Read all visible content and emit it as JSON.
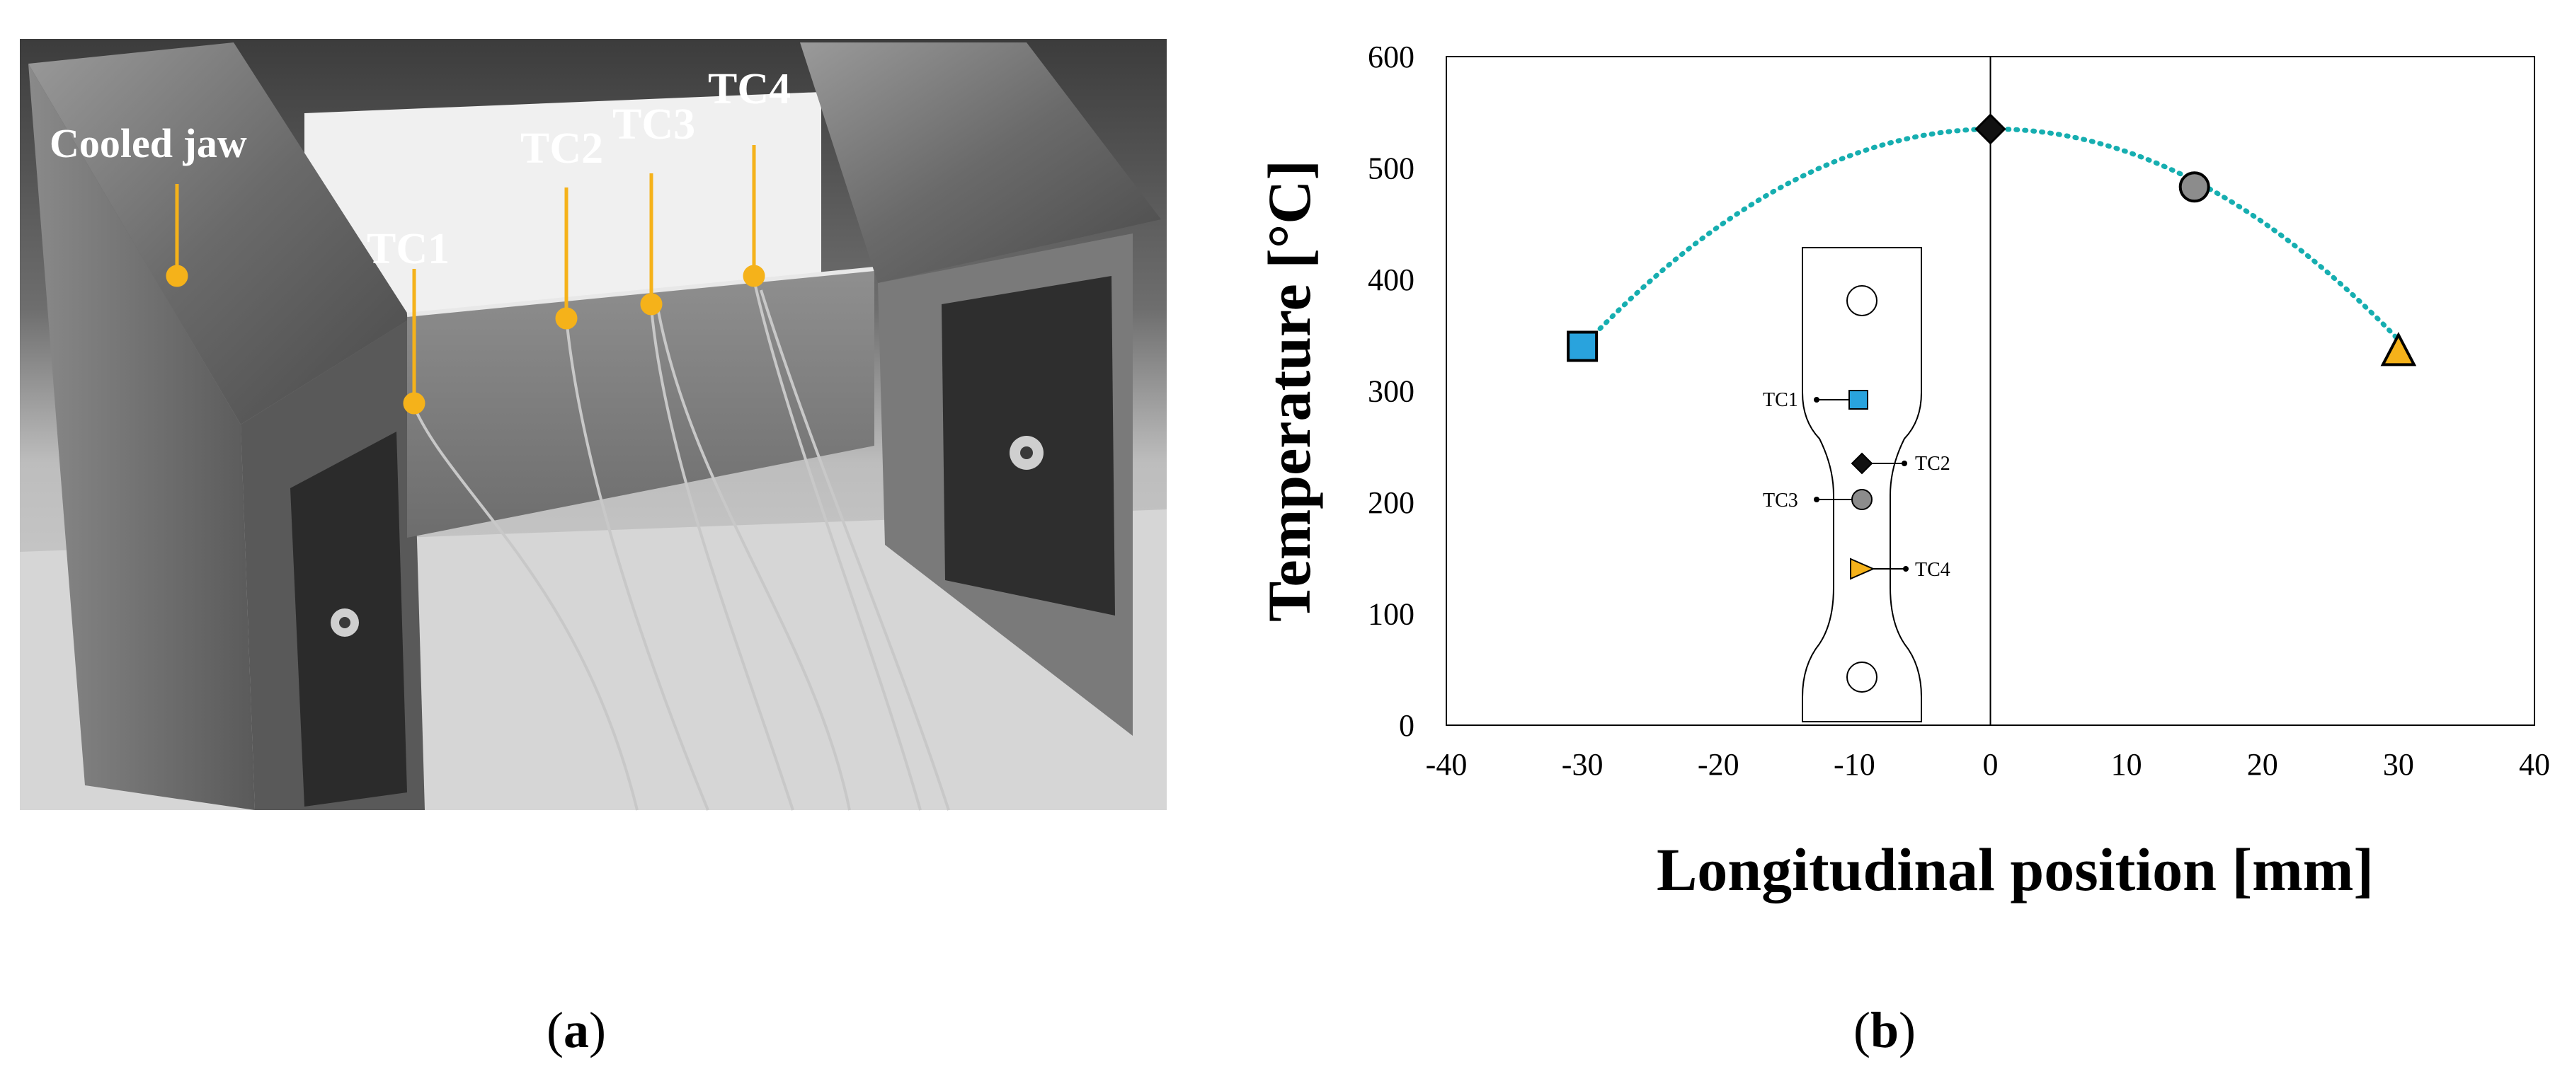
{
  "panel_a": {
    "caption": "a",
    "labels": {
      "cooled_jaw": "Cooled jaw",
      "tc1": "TC1",
      "tc2": "TC2",
      "tc3": "TC3",
      "tc4": "TC4"
    },
    "colors": {
      "pointer": "#F5B21A",
      "pointer_text": "#ffffff"
    }
  },
  "panel_b": {
    "caption": "b",
    "inset": {
      "labels": [
        "TC1",
        "TC2",
        "TC3",
        "TC4"
      ]
    }
  },
  "chart_data": {
    "type": "scatter",
    "title": "",
    "xlabel": "Longitudinal position [mm]",
    "ylabel": "Temperature [°C]",
    "xlim": [
      -40,
      40
    ],
    "ylim": [
      0,
      600
    ],
    "xticks": [
      "-40",
      "-30",
      "-20",
      "-10",
      "0",
      "10",
      "20",
      "30",
      "40"
    ],
    "yticks": [
      "0",
      "100",
      "200",
      "300",
      "400",
      "500",
      "600"
    ],
    "grid": false,
    "points": [
      {
        "x": -30,
        "y": 340,
        "marker": "square",
        "color": "#29A3DD"
      },
      {
        "x": 0,
        "y": 535,
        "marker": "diamond",
        "color": "#111111"
      },
      {
        "x": 15,
        "y": 483,
        "marker": "circle",
        "color": "#8C8C8C"
      },
      {
        "x": 30,
        "y": 335,
        "marker": "triangle",
        "color": "#F5B21A"
      }
    ],
    "fit_curve": {
      "style": "dotted",
      "color": "#16AEB0",
      "a": -0.2137,
      "b": 0.1075,
      "c": 535
    },
    "vertical_line_at_x": 0
  }
}
